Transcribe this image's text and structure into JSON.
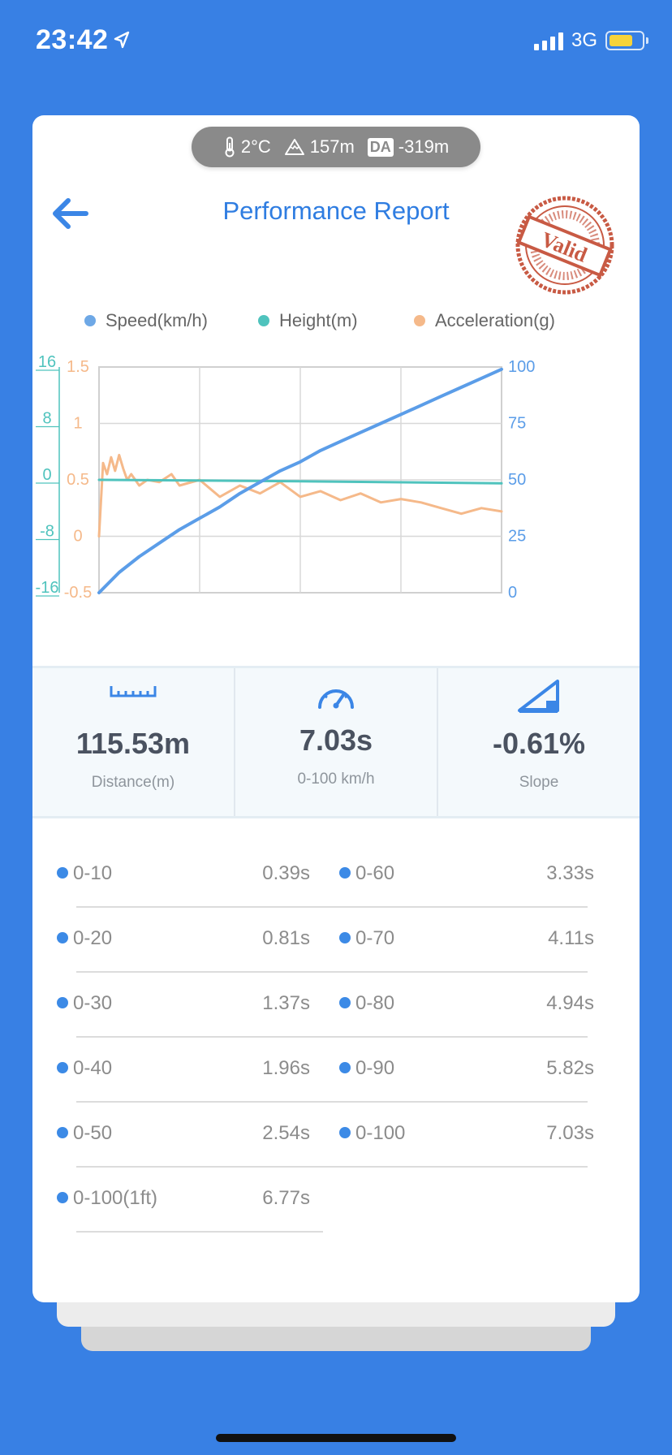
{
  "status_bar": {
    "time": "23:42",
    "network": "3G"
  },
  "environment": {
    "temperature": "2°C",
    "altitude": "157m",
    "da_badge": "DA",
    "density_altitude": "-319m"
  },
  "header": {
    "title": "Performance Report",
    "stamp_text": "Valid"
  },
  "legend": [
    {
      "label": "Speed(km/h)",
      "color": "#6ea8e6"
    },
    {
      "label": "Height(m)",
      "color": "#4fc3bd"
    },
    {
      "label": "Acceleration(g)",
      "color": "#f5b98a"
    }
  ],
  "chart_data": {
    "type": "line",
    "series": [
      {
        "name": "Speed(km/h)",
        "axis": "right",
        "color": "#5b9de8",
        "x": [
          0,
          5,
          10,
          15,
          20,
          25,
          30,
          35,
          40,
          45,
          50,
          55,
          60,
          65,
          70,
          75,
          80,
          85,
          90,
          95,
          100
        ],
        "values": [
          0,
          9,
          16,
          22,
          28,
          33,
          38,
          44,
          49,
          54,
          58,
          63,
          67,
          71,
          75,
          79,
          83,
          87,
          91,
          95,
          99
        ]
      },
      {
        "name": "Height(m)",
        "axis": "left-height",
        "color": "#4fc3bd",
        "x": [
          0,
          50,
          100
        ],
        "values": [
          0,
          -0.2,
          -0.5
        ]
      },
      {
        "name": "Acceleration(g)",
        "axis": "left-accel",
        "color": "#f5b98a",
        "x": [
          0,
          1,
          2,
          3,
          4,
          5,
          6,
          7,
          8,
          10,
          12,
          15,
          18,
          20,
          25,
          30,
          35,
          40,
          45,
          50,
          55,
          60,
          65,
          70,
          75,
          80,
          85,
          90,
          95,
          100
        ],
        "values": [
          0,
          0.65,
          0.55,
          0.7,
          0.58,
          0.72,
          0.6,
          0.5,
          0.55,
          0.45,
          0.5,
          0.48,
          0.55,
          0.45,
          0.5,
          0.35,
          0.45,
          0.38,
          0.48,
          0.35,
          0.4,
          0.32,
          0.38,
          0.3,
          0.33,
          0.3,
          0.25,
          0.2,
          0.25,
          0.22
        ]
      }
    ],
    "y_left_height": {
      "ticks": [
        "16",
        "8",
        "0",
        "-8",
        "-16"
      ],
      "range": [
        -16,
        16
      ]
    },
    "y_left_accel": {
      "ticks": [
        "1.5",
        "1",
        "0.5",
        "0",
        "-0.5"
      ],
      "range": [
        -0.5,
        1.5
      ]
    },
    "y_right_speed": {
      "ticks": [
        "100",
        "75",
        "50",
        "25",
        "0"
      ],
      "range": [
        0,
        100
      ]
    },
    "grid": true
  },
  "metrics": [
    {
      "icon": "ruler-icon",
      "value": "115.53m",
      "label": "Distance(m)"
    },
    {
      "icon": "speedometer-icon",
      "value": "7.03s",
      "label": "0-100 km/h"
    },
    {
      "icon": "slope-icon",
      "value": "-0.61%",
      "label": "Slope"
    }
  ],
  "splits": [
    {
      "label": "0-10",
      "time": "0.39s"
    },
    {
      "label": "0-60",
      "time": "3.33s"
    },
    {
      "label": "0-20",
      "time": "0.81s"
    },
    {
      "label": "0-70",
      "time": "4.11s"
    },
    {
      "label": "0-30",
      "time": "1.37s"
    },
    {
      "label": "0-80",
      "time": "4.94s"
    },
    {
      "label": "0-40",
      "time": "1.96s"
    },
    {
      "label": "0-90",
      "time": "5.82s"
    },
    {
      "label": "0-50",
      "time": "2.54s"
    },
    {
      "label": "0-100",
      "time": "7.03s"
    },
    {
      "label": "0-100(1ft)",
      "time": "6.77s"
    }
  ]
}
